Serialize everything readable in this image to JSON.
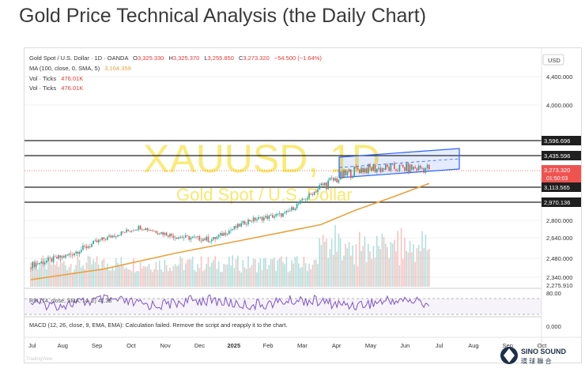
{
  "page": {
    "title": "Gold Price Technical Analysis (the Daily Chart)"
  },
  "legend": {
    "symbol_line": "Gold Spot / U.S. Dollar · 1D · OANDA",
    "ohlc": {
      "o_label": "O",
      "o": "3,325.330",
      "h_label": "H",
      "h": "3,325.370",
      "l_label": "L",
      "l": "3,255.850",
      "c_label": "C",
      "c": "3,273.320",
      "change": "−54.500 (−1.64%)"
    },
    "ma_label": "MA (100, close, 0, SMA, 5)",
    "ma_value": "3,164.359",
    "vol1_label": "Vol · Ticks",
    "vol1_value": "476.01K",
    "vol2_label": "Vol · Ticks",
    "vol2_value": "476.01K"
  },
  "watermark": {
    "symbol": "XAUUSD, 1D",
    "name": "Gold Spot / U.S. Dollar"
  },
  "currency": "USD",
  "rsi_label": "RSI (14, close, SMA, 14, 2) 41.38",
  "macd_label": "MACD (12, 26, close, 9, EMA, EMA): Calculation failed. Remove the script and reapply it to the chart.",
  "macd_value": "0.000",
  "rsi_value": "80.00",
  "bottom_text": "TradingView",
  "logo": {
    "line1": "SINO SOUND",
    "line2": "環 球 聯 合"
  },
  "colors": {
    "up": "#26a69a",
    "down": "#ef5350",
    "ma": "#e8a33d",
    "channel": "#2962ff",
    "rsi": "#7e57c2",
    "watermark": "#f5d90a"
  },
  "chart_data": {
    "type": "candlestick",
    "x_axis_labels": [
      "Jul",
      "Aug",
      "Sep",
      "Oct",
      "Nov",
      "Dec",
      "2025",
      "Feb",
      "Mar",
      "Apr",
      "May",
      "Jun",
      "Jul",
      "Aug",
      "Sep",
      "Oct"
    ],
    "y_axis_labels": [
      "4,400.000",
      "4,000.000",
      "2,800.000",
      "2,640.000",
      "2,480.000",
      "2,340.000"
    ],
    "price_tags": [
      {
        "label": "3,596.696",
        "value": 3596.696,
        "style": "line"
      },
      {
        "label": "3,435.596",
        "value": 3435.596,
        "style": "line"
      },
      {
        "label": "3,273.320",
        "value": 3273.32,
        "style": "current",
        "countdown": "01:50:03"
      },
      {
        "label": "3,113.565",
        "value": 3113.565,
        "style": "line"
      },
      {
        "label": "2,970.136",
        "value": 2970.136,
        "style": "line"
      },
      {
        "label": "2,275.910",
        "value": 2275.91,
        "style": "low"
      }
    ],
    "y_range": [
      2230,
      4540
    ],
    "monthly_close": [
      {
        "month": "Jul 2024",
        "value": 2430
      },
      {
        "month": "Aug 2024",
        "value": 2500
      },
      {
        "month": "Sep 2024",
        "value": 2630
      },
      {
        "month": "Oct 2024",
        "value": 2740
      },
      {
        "month": "Nov 2024",
        "value": 2650
      },
      {
        "month": "Dec 2024",
        "value": 2625
      },
      {
        "month": "Jan 2025",
        "value": 2800
      },
      {
        "month": "Feb 2025",
        "value": 2860
      },
      {
        "month": "Mar 2025",
        "value": 3125
      },
      {
        "month": "Apr 2025",
        "value": 3290
      },
      {
        "month": "May 2025",
        "value": 3300
      },
      {
        "month": "Jun 2025",
        "value": 3300
      }
    ],
    "ma_points": [
      {
        "month": "Jul 2024",
        "value": 2320
      },
      {
        "month": "Sep 2024",
        "value": 2400
      },
      {
        "month": "Nov 2024",
        "value": 2520
      },
      {
        "month": "Jan 2025",
        "value": 2630
      },
      {
        "month": "Mar 2025",
        "value": 2760
      },
      {
        "month": "Apr 2025",
        "value": 2900
      },
      {
        "month": "May 2025",
        "value": 3020
      },
      {
        "month": "Jun 2025",
        "value": 3150
      }
    ]
  }
}
